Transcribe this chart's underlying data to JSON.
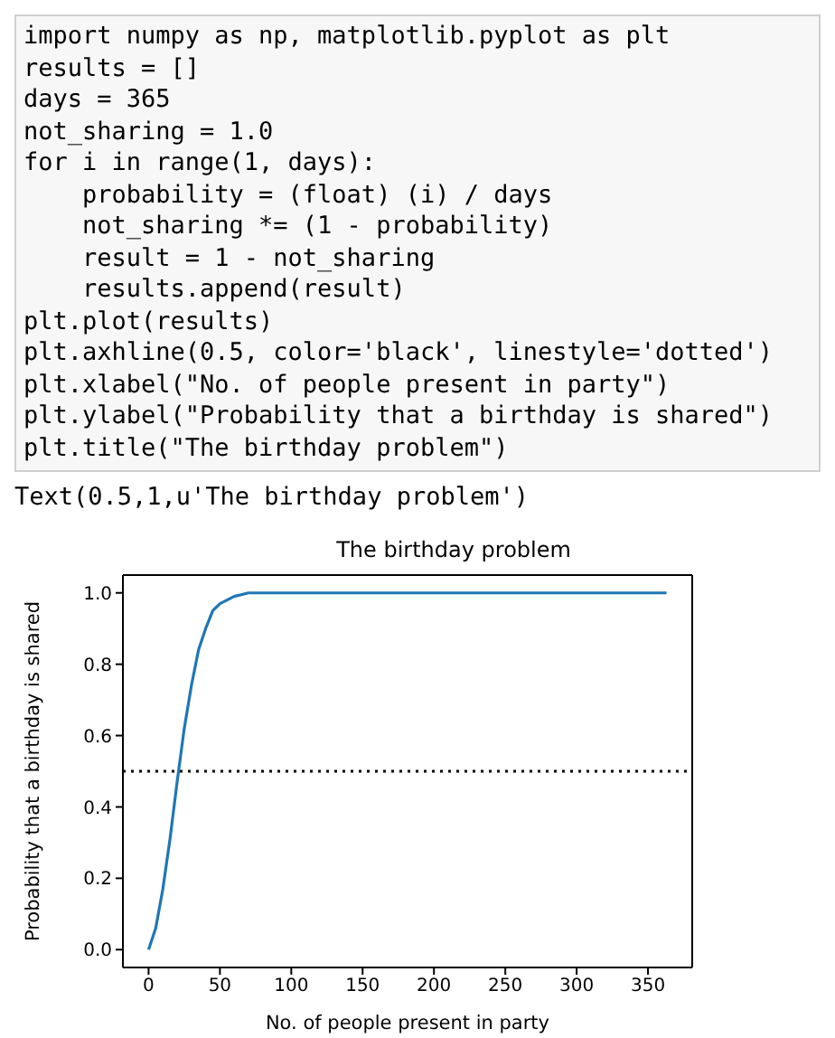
{
  "chart_data": {
    "type": "line",
    "title": "The birthday problem",
    "xlabel": "No. of people present in party",
    "ylabel": "Probability that a birthday is shared",
    "annotations": [
      "import numpy as np, matplotlib.pyplot as plt",
      "results = []",
      "days = 365",
      "not_sharing = 1.0",
      "for i in range(1, days):",
      "    probability = (float) (i) / days",
      "    not_sharing *= (1 - probability)",
      "    result = 1 - not_sharing",
      "    results.append(result)",
      "plt.plot(results)",
      "plt.axhline(0.5, color='black', linestyle='dotted')",
      "plt.xlabel(\"No. of people present in party\")",
      "plt.ylabel(\"Probability that a birthday is shared\")",
      "plt.title(\"The birthday problem\")",
      "Text(0.5,1,u'The birthday problem')"
    ],
    "x": [
      0,
      5,
      10,
      15,
      20,
      25,
      30,
      35,
      40,
      45,
      50,
      60,
      70,
      100,
      200,
      300,
      363
    ],
    "series": [
      {
        "color": "#1f77b4",
        "values": [
          0.0,
          0.06,
          0.17,
          0.31,
          0.47,
          0.62,
          0.74,
          0.84,
          0.9,
          0.95,
          0.97,
          0.99,
          1.0,
          1.0,
          1.0,
          1.0,
          1.0
        ]
      }
    ],
    "xlim": [
      -18,
      381
    ],
    "xticks": [
      0,
      50,
      100,
      150,
      200,
      250,
      300,
      350
    ],
    "ylim": [
      -0.05,
      1.05
    ],
    "yticks": [
      {
        "value": 0,
        "label": "0.0"
      },
      {
        "value": 0.2,
        "label": "0.2"
      },
      {
        "value": 0.4,
        "label": "0.4"
      },
      {
        "value": 0.6,
        "label": "0.6"
      },
      {
        "value": 0.8,
        "label": "0.8"
      },
      {
        "value": 1,
        "label": "1.0"
      }
    ],
    "ref_lines": [
      {
        "axis": "y",
        "value": 0.5,
        "color": "#000000",
        "line_style": "dotted"
      }
    ],
    "grid": false,
    "legend": false,
    "marker": "none",
    "line_style": "solid"
  }
}
